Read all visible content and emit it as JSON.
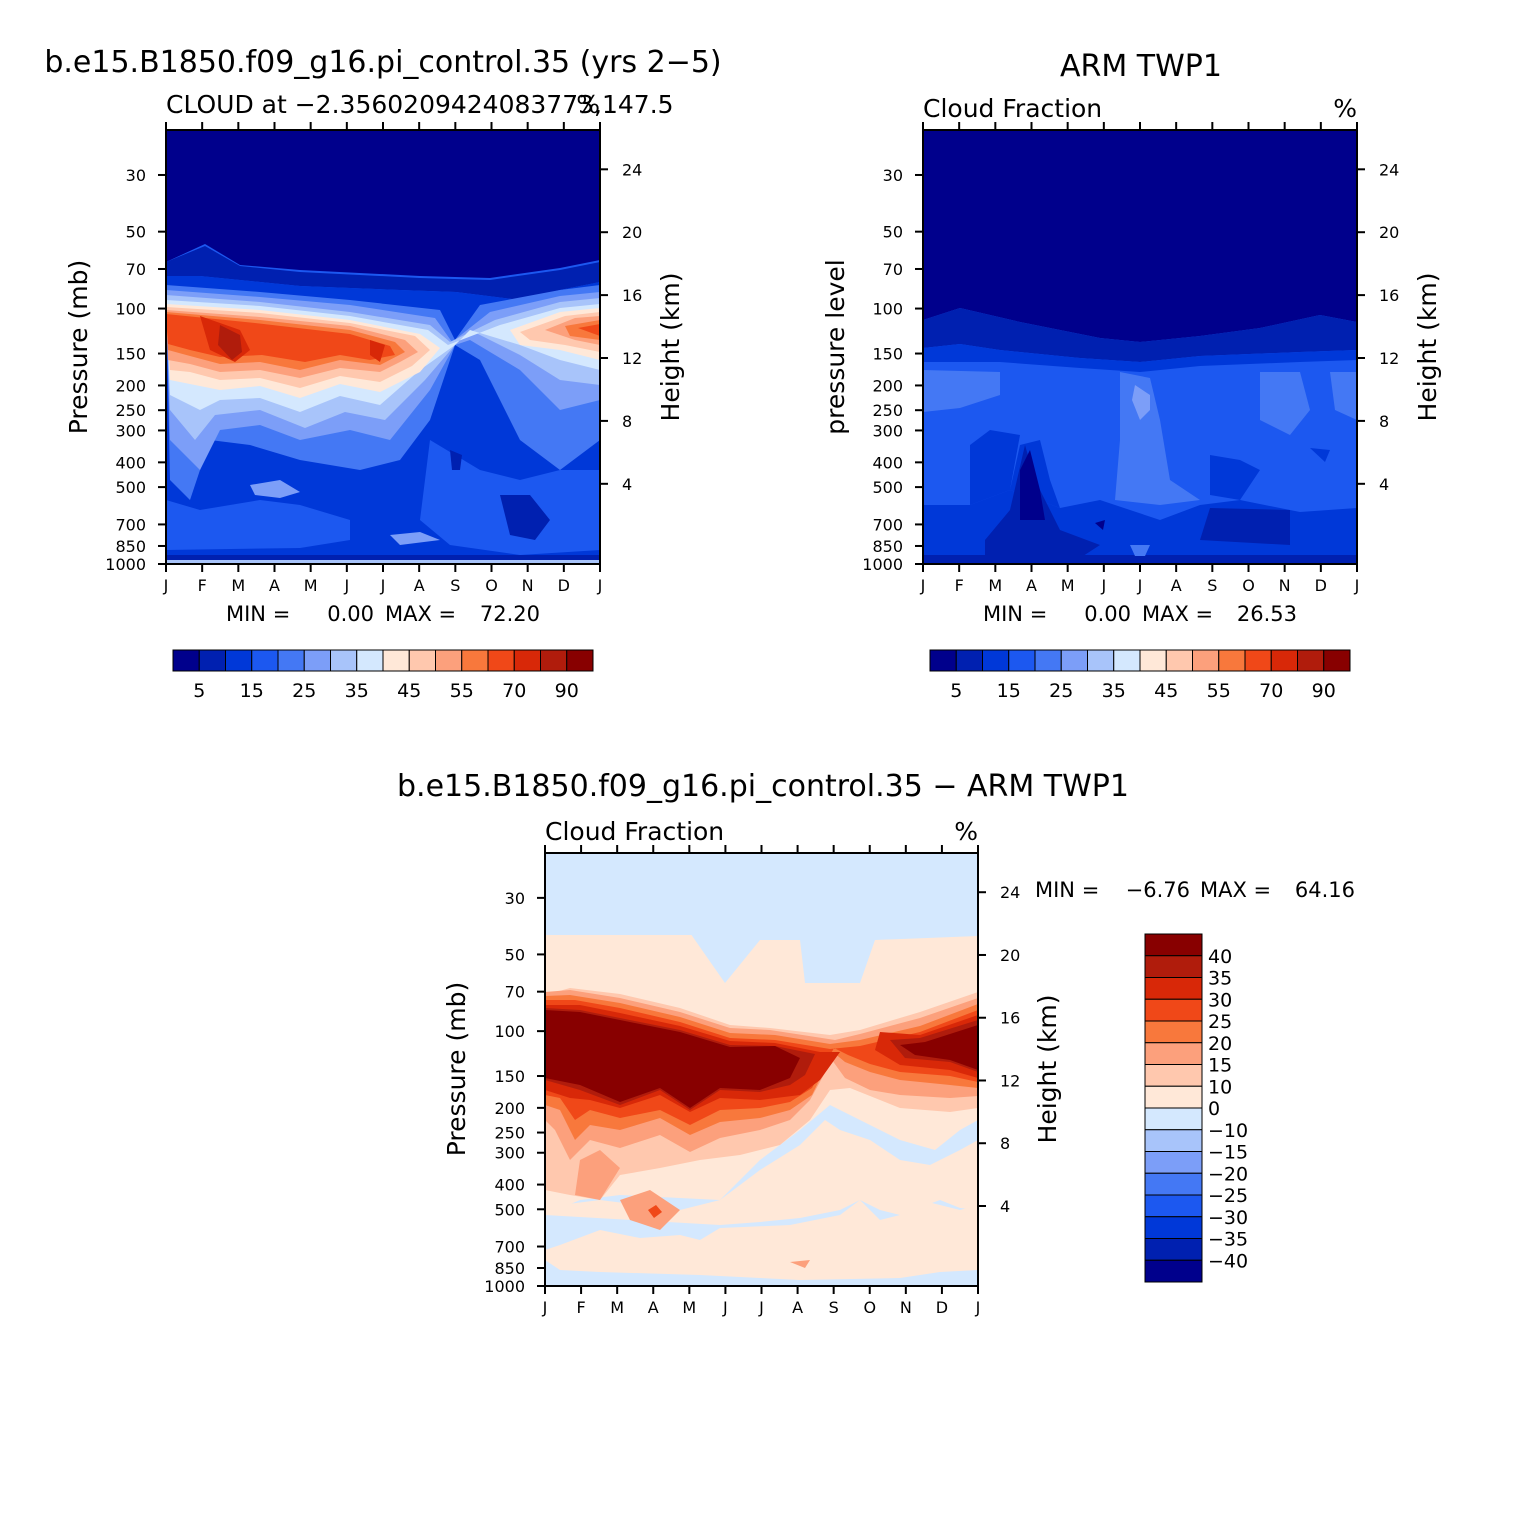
{
  "chart_data": [
    {
      "type": "heatmap",
      "title": "b.e15.B1850.f09_g16.pi_control.35 (yrs 2−5)",
      "subtitle_left": "CLOUD at −2.3560209424083773,147.5",
      "subtitle_right": "%",
      "xlabel": "",
      "ylabel": "Pressure (mb)",
      "ylabel_right": "Height (km)",
      "x_ticks": [
        "J",
        "F",
        "M",
        "A",
        "M",
        "J",
        "J",
        "A",
        "S",
        "O",
        "N",
        "D",
        "J"
      ],
      "y_ticks": [
        "30",
        "50",
        "70",
        "100",
        "150",
        "200",
        "250",
        "300",
        "400",
        "500",
        "700",
        "850",
        "1000"
      ],
      "y_ticks_right": [
        "24",
        "20",
        "16",
        "12",
        "8",
        "4"
      ],
      "min_label": "MIN =",
      "min_value": "0.00",
      "max_label": "MAX =",
      "max_value": "72.20",
      "colorbar_labels": [
        "5",
        "15",
        "25",
        "35",
        "45",
        "55",
        "70",
        "90"
      ],
      "colors": [
        "#00008c",
        "#0020b0",
        "#0038d8",
        "#1c58f0",
        "#4478f4",
        "#7c9ef8",
        "#a8c4fa",
        "#d4e8fe",
        "#ffe8d8",
        "#ffc8ae",
        "#fca07c",
        "#f8783c",
        "#f04818",
        "#d82808",
        "#b01c0c",
        "#880000"
      ]
    },
    {
      "type": "heatmap",
      "title": "ARM TWP1",
      "subtitle_left": "Cloud Fraction",
      "subtitle_right": "%",
      "xlabel": "",
      "ylabel": "pressure level",
      "ylabel_right": "Height (km)",
      "x_ticks": [
        "J",
        "F",
        "M",
        "A",
        "M",
        "J",
        "J",
        "A",
        "S",
        "O",
        "N",
        "D",
        "J"
      ],
      "y_ticks": [
        "30",
        "50",
        "70",
        "100",
        "150",
        "200",
        "250",
        "300",
        "400",
        "500",
        "700",
        "850",
        "1000"
      ],
      "y_ticks_right": [
        "24",
        "20",
        "16",
        "12",
        "8",
        "4"
      ],
      "min_label": "MIN =",
      "min_value": "0.00",
      "max_label": "MAX =",
      "max_value": "26.53",
      "colorbar_labels": [
        "5",
        "15",
        "25",
        "35",
        "45",
        "55",
        "70",
        "90"
      ],
      "colors": [
        "#00008c",
        "#0020b0",
        "#0038d8",
        "#1c58f0",
        "#4478f4",
        "#7c9ef8",
        "#a8c4fa",
        "#d4e8fe",
        "#ffe8d8",
        "#ffc8ae",
        "#fca07c",
        "#f8783c",
        "#f04818",
        "#d82808",
        "#b01c0c",
        "#880000"
      ]
    },
    {
      "type": "heatmap",
      "title": "b.e15.B1850.f09_g16.pi_control.35 − ARM TWP1",
      "subtitle_left": "Cloud Fraction",
      "subtitle_right": "%",
      "xlabel": "",
      "ylabel": "Pressure (mb)",
      "ylabel_right": "Height (km)",
      "x_ticks": [
        "J",
        "F",
        "M",
        "A",
        "M",
        "J",
        "J",
        "A",
        "S",
        "O",
        "N",
        "D",
        "J"
      ],
      "y_ticks": [
        "30",
        "50",
        "70",
        "100",
        "150",
        "200",
        "250",
        "300",
        "400",
        "500",
        "700",
        "850",
        "1000"
      ],
      "y_ticks_right": [
        "24",
        "20",
        "16",
        "12",
        "8",
        "4"
      ],
      "min_label": "MIN =",
      "min_value": "−6.76",
      "max_label": "MAX =",
      "max_value": "64.16",
      "colorbar_labels": [
        "40",
        "35",
        "30",
        "25",
        "20",
        "15",
        "10",
        "0",
        "−10",
        "−15",
        "−20",
        "−25",
        "−30",
        "−35",
        "−40"
      ],
      "colors": [
        "#880000",
        "#b01c0c",
        "#d82808",
        "#f04818",
        "#f8783c",
        "#fca07c",
        "#ffc8ae",
        "#ffe8d8",
        "#d4e8fe",
        "#a8c4fa",
        "#7c9ef8",
        "#4478f4",
        "#1c58f0",
        "#0038d8",
        "#0020b0",
        "#00008c"
      ]
    }
  ]
}
